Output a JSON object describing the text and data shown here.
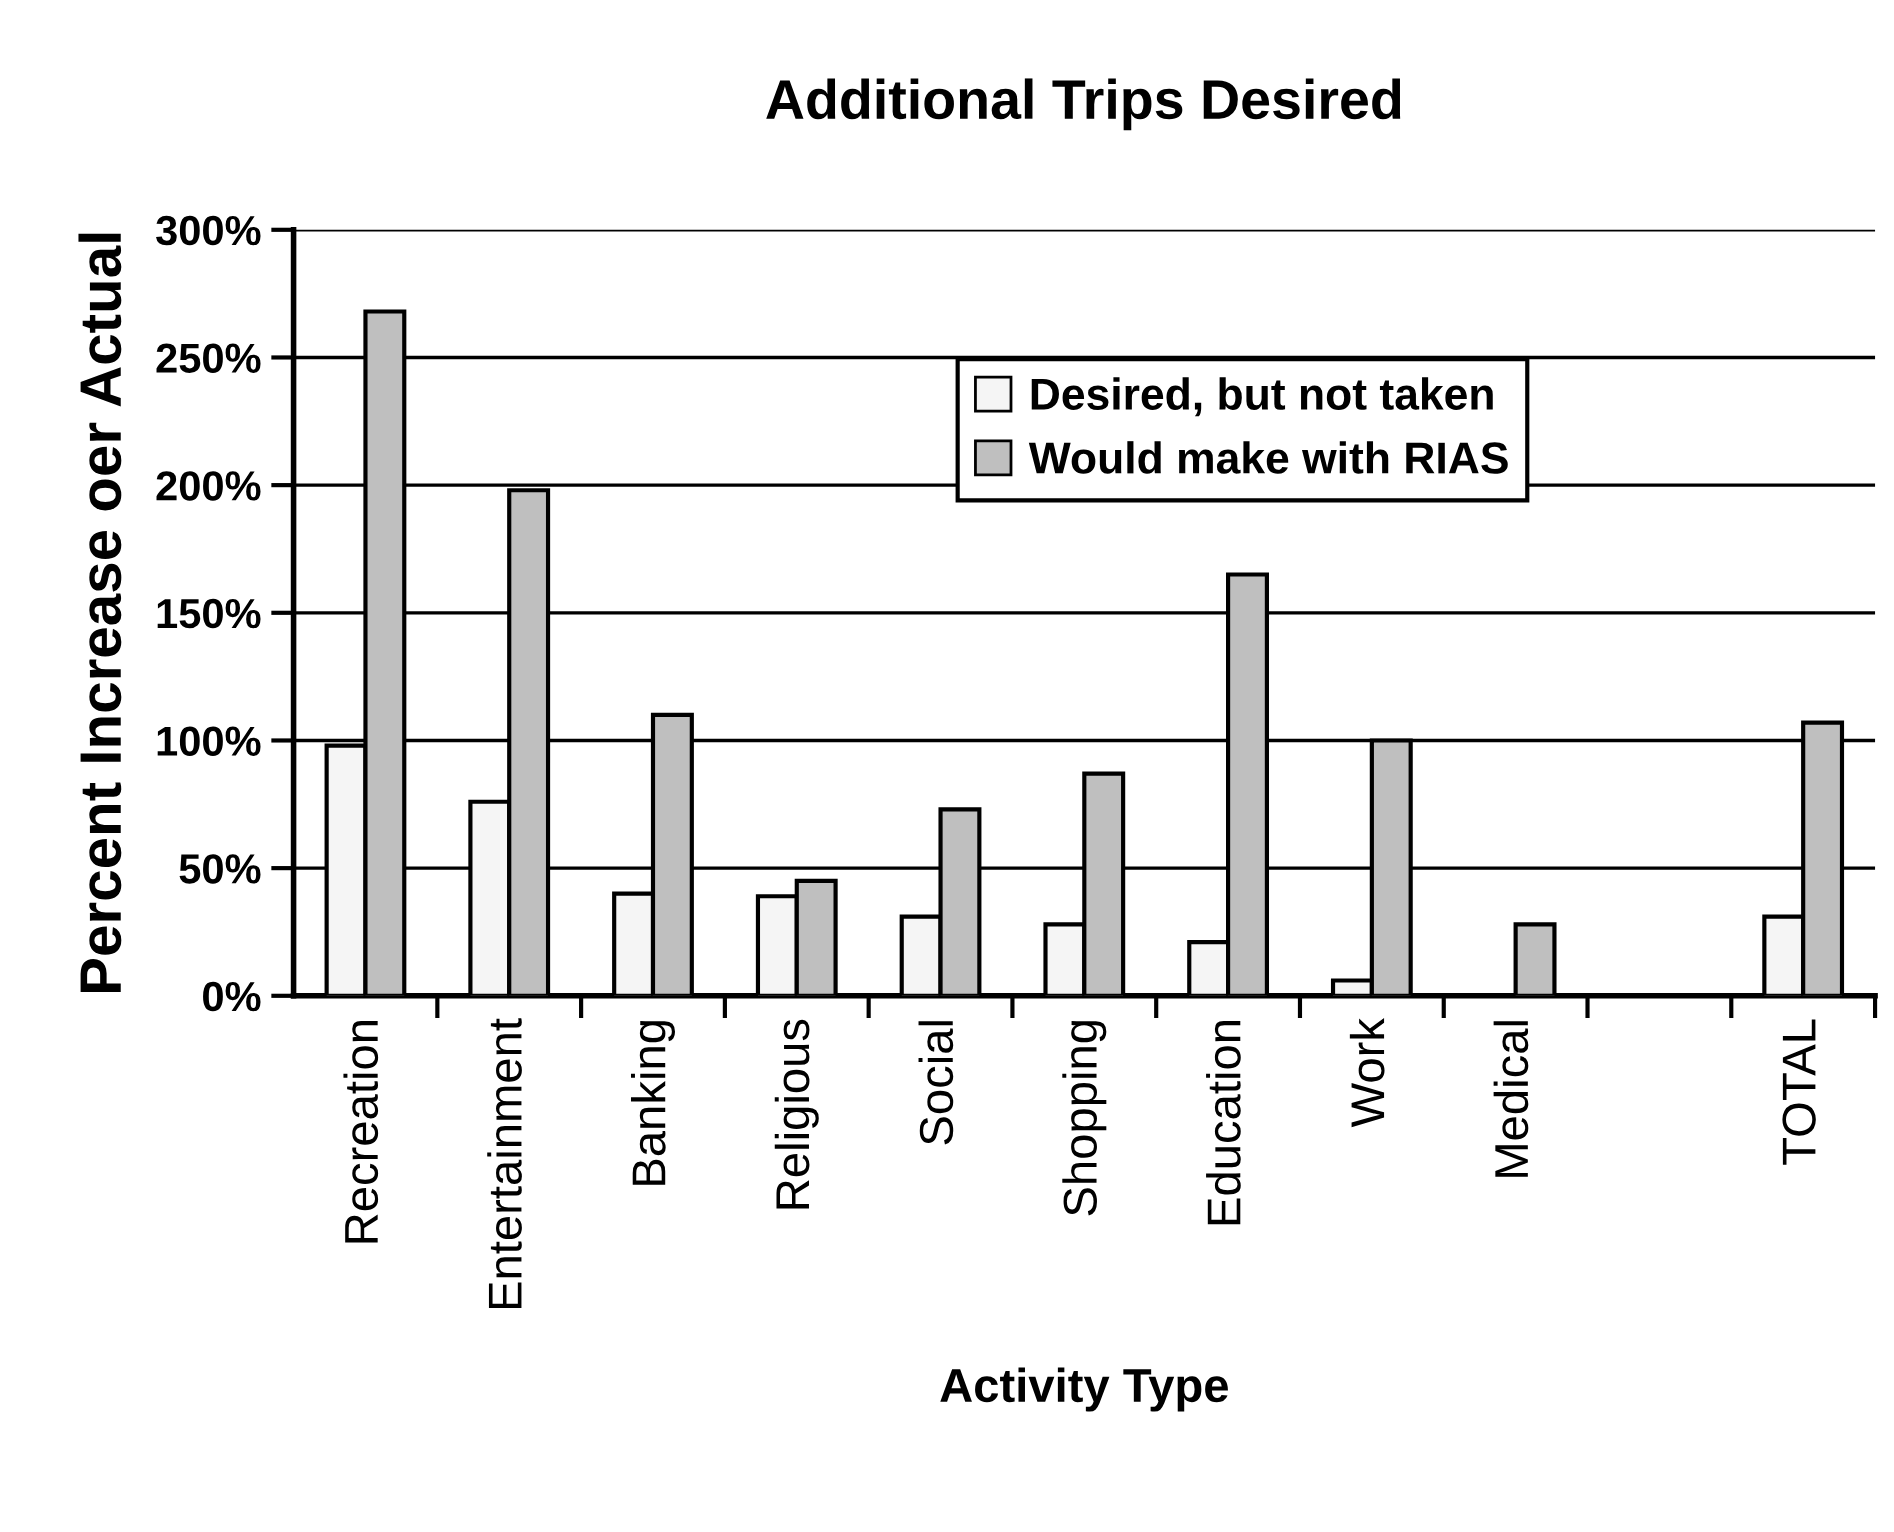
{
  "chart_data": {
    "type": "bar",
    "title": "Additional Trips Desired",
    "xlabel": "Activity Type",
    "ylabel": "Percent Increase oer Actual",
    "categories": [
      "Recreation",
      "Entertainment",
      "Banking",
      "Religious",
      "Social",
      "Shopping",
      "Education",
      "Work",
      "Medical",
      null,
      "TOTAL"
    ],
    "series": [
      {
        "name": "Desired, but not taken",
        "color": "#f5f5f5",
        "values": [
          98,
          76,
          40,
          39,
          31,
          28,
          21,
          6,
          null,
          null,
          31
        ]
      },
      {
        "name": "Would make with RIAS",
        "color": "#bfbfbf",
        "values": [
          268,
          198,
          110,
          45,
          73,
          87,
          165,
          100,
          28,
          null,
          107
        ]
      }
    ],
    "ylim": [
      0,
      300
    ],
    "yticks": [
      {
        "value": 0,
        "label": "0%"
      },
      {
        "value": 50,
        "label": "50%"
      },
      {
        "value": 100,
        "label": "100%"
      },
      {
        "value": 150,
        "label": "150%"
      },
      {
        "value": 200,
        "label": "200%"
      },
      {
        "value": 250,
        "label": "250%"
      },
      {
        "value": 300,
        "label": "300%"
      }
    ],
    "grid": "y",
    "legend": "top"
  }
}
